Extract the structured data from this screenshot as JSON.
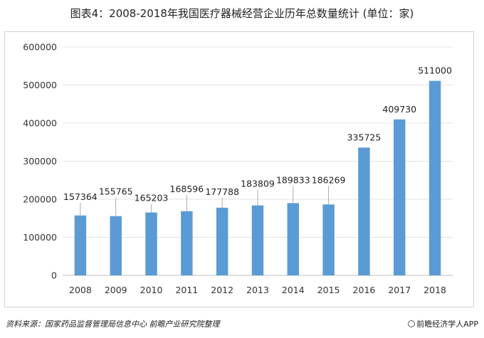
{
  "chart_data": {
    "type": "bar",
    "title": "图表4：2008-2018年我国医疗器械经营企业历年总数量统计 (单位：家)",
    "categories": [
      "2008",
      "2009",
      "2010",
      "2011",
      "2012",
      "2013",
      "2014",
      "2015",
      "2016",
      "2017",
      "2018"
    ],
    "values": [
      157364,
      155765,
      165203,
      168596,
      177788,
      183809,
      189833,
      186269,
      335725,
      409730,
      511000
    ],
    "data_labels": [
      "157364",
      "155765",
      "165203",
      "168596",
      "177788",
      "183809",
      "189833",
      "186269",
      "335725",
      "409730",
      "511000"
    ],
    "ylim": [
      0,
      600000
    ],
    "yticks": [
      "0",
      "100000",
      "200000",
      "300000",
      "400000",
      "500000",
      "600000"
    ],
    "bar_color": "#5b9bd5",
    "gridlines": true,
    "legend": "none"
  },
  "footer": {
    "source": "资料来源：国家药品监督管理局信息中心 前瞻产业研究院整理",
    "brand": "前瞻经济学人APP"
  }
}
